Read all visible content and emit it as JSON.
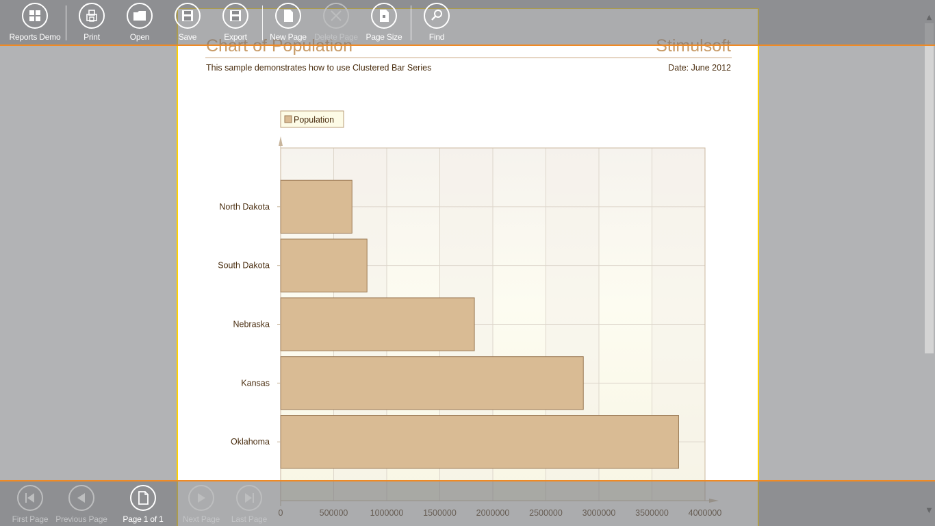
{
  "report": {
    "title": "Chart of Population",
    "brand": "Stimulsoft",
    "description": "This sample demonstrates how to use Clustered Bar Series",
    "date": "Date: June 2012"
  },
  "chart_data": {
    "type": "bar",
    "orientation": "horizontal",
    "categories": [
      "North Dakota",
      "South Dakota",
      "Nebraska",
      "Kansas",
      "Oklahoma"
    ],
    "series": [
      {
        "name": "Population",
        "values": [
          672591,
          814180,
          1826341,
          2853118,
          3751351
        ]
      }
    ],
    "xlim": [
      0,
      4000000
    ],
    "xticks": [
      "0",
      "500000",
      "1000000",
      "1500000",
      "2000000",
      "2500000",
      "3000000",
      "3500000",
      "4000000"
    ],
    "grid": true,
    "legend": "top-left",
    "bar_color": "#d9bb94",
    "bar_border_color": "#9b7a55"
  },
  "toolbar": {
    "items": [
      {
        "label": "Reports Demo",
        "icon": "grid-icon",
        "enabled": true
      },
      {
        "label": "Print",
        "icon": "print-icon",
        "enabled": true
      },
      {
        "label": "Open",
        "icon": "folder-icon",
        "enabled": true
      },
      {
        "label": "Save",
        "icon": "save-icon",
        "enabled": true
      },
      {
        "label": "Export",
        "icon": "export-icon",
        "enabled": true
      },
      {
        "label": "New Page",
        "icon": "new-page-icon",
        "enabled": true
      },
      {
        "label": "Delete Page",
        "icon": "delete-icon",
        "enabled": false
      },
      {
        "label": "Page Size",
        "icon": "page-size-icon",
        "enabled": true
      },
      {
        "label": "Find",
        "icon": "search-icon",
        "enabled": true
      }
    ]
  },
  "navbar": {
    "items": [
      {
        "label": "First Page",
        "icon": "first-page-icon",
        "enabled": false
      },
      {
        "label": "Previous Page",
        "icon": "previous-page-icon",
        "enabled": false
      },
      {
        "label": "Page 1 of 1",
        "icon": "page-icon",
        "enabled": true
      },
      {
        "label": "Next Page",
        "icon": "next-page-icon",
        "enabled": false
      },
      {
        "label": "Last Page",
        "icon": "last-page-icon",
        "enabled": false
      }
    ]
  },
  "colors": {
    "accent": "#f08a24",
    "page_border": "#ffd200",
    "title_color": "#c79a66"
  }
}
